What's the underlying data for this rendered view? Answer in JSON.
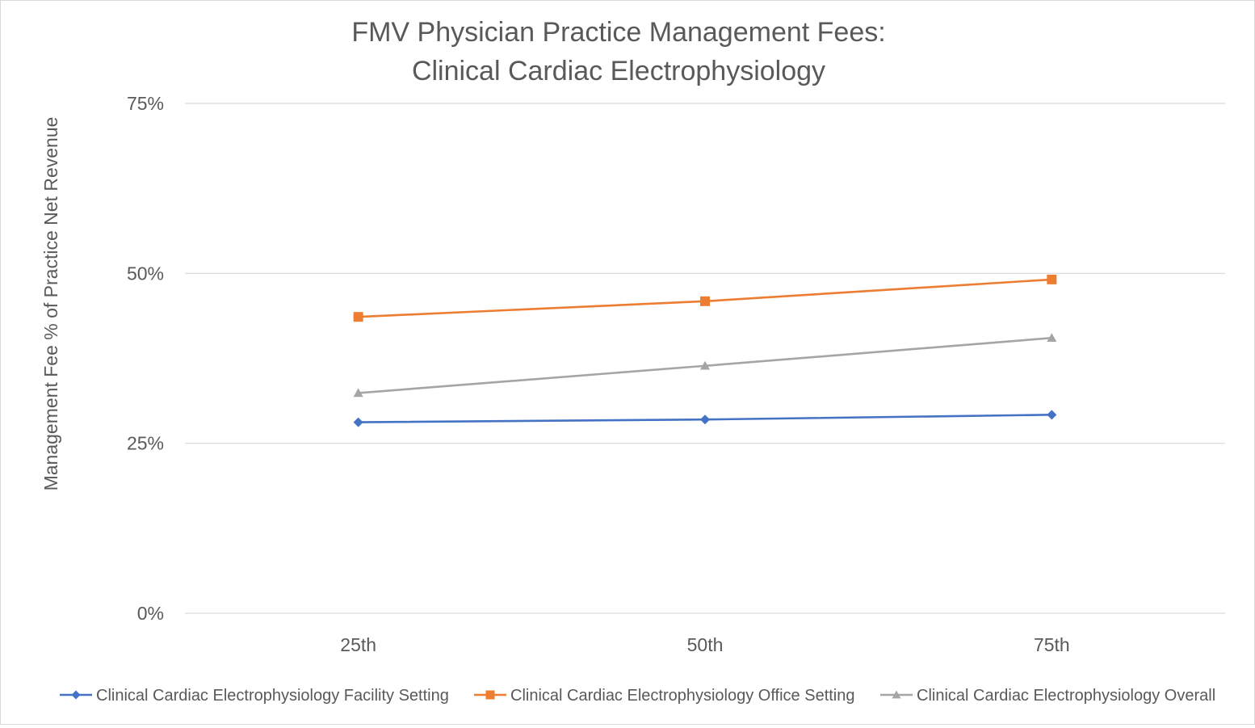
{
  "chart_data": {
    "type": "line",
    "title_lines": [
      "FMV Physician Practice Management Fees:",
      "Clinical Cardiac Electrophysiology"
    ],
    "xlabel": "",
    "ylabel": "Management Fee % of Practice Net Revenue",
    "categories": [
      "25th",
      "50th",
      "75th"
    ],
    "ylim": [
      0,
      75
    ],
    "yticks": [
      0,
      25,
      50,
      75
    ],
    "ytick_labels": [
      "0%",
      "25%",
      "50%",
      "75%"
    ],
    "grid": true,
    "legend_position": "bottom",
    "series": [
      {
        "name": "Clinical Cardiac Electrophysiology Facility Setting",
        "color": "#4472C4",
        "marker": "diamond",
        "values": [
          28.1,
          28.5,
          29.2
        ]
      },
      {
        "name": "Clinical Cardiac Electrophysiology Office Setting",
        "color": "#ED7D31",
        "marker": "square",
        "values": [
          43.6,
          45.9,
          49.1
        ]
      },
      {
        "name": "Clinical Cardiac Electrophysiology Overall",
        "color": "#A5A5A5",
        "marker": "triangle",
        "values": [
          32.4,
          36.4,
          40.5
        ]
      }
    ]
  }
}
